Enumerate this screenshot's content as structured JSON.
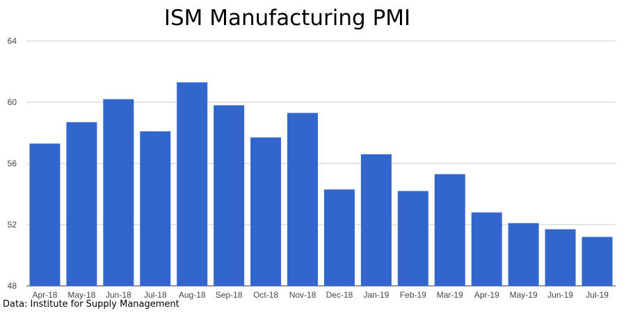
{
  "chart_data": {
    "type": "bar",
    "title": "ISM Manufacturing PMI",
    "source": "Data: Institute for Supply Management",
    "xlabel": "",
    "ylabel": "",
    "ylim": [
      48,
      64
    ],
    "yticks": [
      48,
      52,
      56,
      60,
      64
    ],
    "grid": true,
    "bar_color": "#3366cc",
    "categories": [
      "Apr-18",
      "May-18",
      "Jun-18",
      "Jul-18",
      "Aug-18",
      "Sep-18",
      "Oct-18",
      "Nov-18",
      "Dec-18",
      "Jan-19",
      "Feb-19",
      "Mar-19",
      "Apr-19",
      "May-19",
      "Jun-19",
      "Jul-19"
    ],
    "values": [
      57.3,
      58.7,
      60.2,
      58.1,
      61.3,
      59.8,
      57.7,
      59.3,
      54.3,
      56.6,
      54.2,
      55.3,
      52.8,
      52.1,
      51.7,
      51.2
    ]
  }
}
